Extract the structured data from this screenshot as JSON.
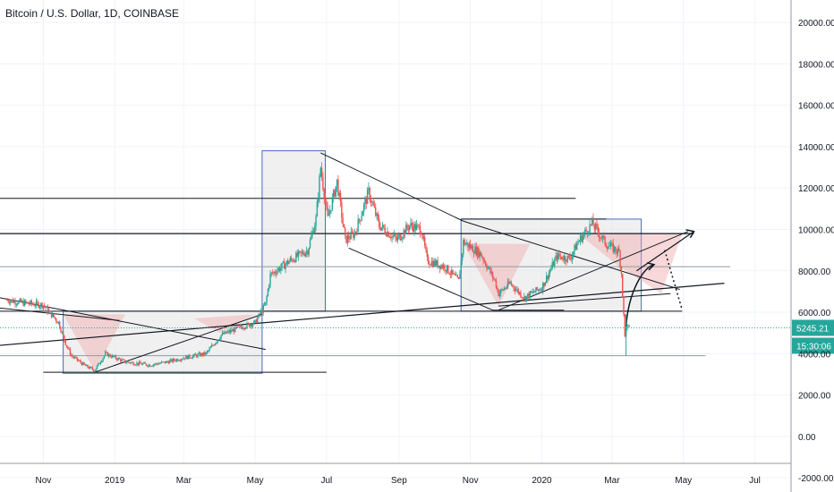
{
  "header": {
    "title": "Bitcoin / U.S. Dollar, 1D, COINBASE"
  },
  "price_axis": {
    "ticks": [
      "20000.00",
      "18000.00",
      "16000.00",
      "14000.00",
      "12000.00",
      "10000.00",
      "8000.00",
      "6000.00",
      "4000.00",
      "2000.00",
      "0.00",
      "-2000.00"
    ],
    "current_price_badge": "5245.21",
    "countdown_badge": "15:30:06"
  },
  "time_axis": {
    "ticks": [
      "Nov",
      "2019",
      "Mar",
      "May",
      "Jul",
      "Sep",
      "Nov",
      "2020",
      "Mar",
      "May",
      "Jul"
    ]
  },
  "colors": {
    "up": "#26a69a",
    "down": "#ef5350",
    "price_line": "#26a69a",
    "box": "#4a6bb5",
    "zone_fill": "#f0a8a8",
    "box_fill": "#e6e6e6"
  },
  "chart_data": {
    "type": "candlestick",
    "title": "Bitcoin / U.S. Dollar, 1D, COINBASE",
    "x_range": [
      "2018-09-25",
      "2020-08-01"
    ],
    "ylim": [
      -2600,
      21000
    ],
    "grid": true,
    "series": [
      {
        "values": [
          [
            "2018-10-01",
            6600
          ],
          [
            "2018-10-15",
            6450
          ],
          [
            "2018-11-01",
            6350
          ],
          [
            "2018-11-14",
            5500
          ],
          [
            "2018-11-20",
            4500
          ],
          [
            "2018-11-25",
            3900
          ],
          [
            "2018-12-07",
            3400
          ],
          [
            "2018-12-15",
            3200
          ],
          [
            "2018-12-24",
            4000
          ],
          [
            "2019-01-10",
            3600
          ],
          [
            "2019-01-31",
            3450
          ],
          [
            "2019-02-15",
            3600
          ],
          [
            "2019-03-01",
            3800
          ],
          [
            "2019-03-20",
            4000
          ],
          [
            "2019-04-02",
            4900
          ],
          [
            "2019-04-20",
            5300
          ],
          [
            "2019-05-01",
            5500
          ],
          [
            "2019-05-10",
            6400
          ],
          [
            "2019-05-14",
            7800
          ],
          [
            "2019-05-31",
            8500
          ],
          [
            "2019-06-15",
            9000
          ],
          [
            "2019-06-22",
            10500
          ],
          [
            "2019-06-26",
            13000
          ],
          [
            "2019-07-02",
            10500
          ],
          [
            "2019-07-10",
            12300
          ],
          [
            "2019-07-17",
            9500
          ],
          [
            "2019-07-25",
            9800
          ],
          [
            "2019-08-06",
            11800
          ],
          [
            "2019-08-15",
            10200
          ],
          [
            "2019-08-30",
            9500
          ],
          [
            "2019-09-10",
            10200
          ],
          [
            "2019-09-20",
            10000
          ],
          [
            "2019-09-25",
            8500
          ],
          [
            "2019-10-10",
            8200
          ],
          [
            "2019-10-22",
            7500
          ],
          [
            "2019-10-26",
            9400
          ],
          [
            "2019-11-10",
            8800
          ],
          [
            "2019-11-22",
            7500
          ],
          [
            "2019-11-25",
            6900
          ],
          [
            "2019-12-05",
            7400
          ],
          [
            "2019-12-17",
            6700
          ],
          [
            "2020-01-01",
            7200
          ],
          [
            "2020-01-14",
            8700
          ],
          [
            "2020-01-25",
            8600
          ],
          [
            "2020-02-01",
            9400
          ],
          [
            "2020-02-13",
            10300
          ],
          [
            "2020-02-25",
            9300
          ],
          [
            "2020-03-07",
            8900
          ],
          [
            "2020-03-09",
            7900
          ],
          [
            "2020-03-12",
            4800
          ],
          [
            "2020-03-13",
            5300
          ],
          [
            "2020-03-16",
            5245
          ]
        ]
      }
    ],
    "last_price": 5245.21
  }
}
